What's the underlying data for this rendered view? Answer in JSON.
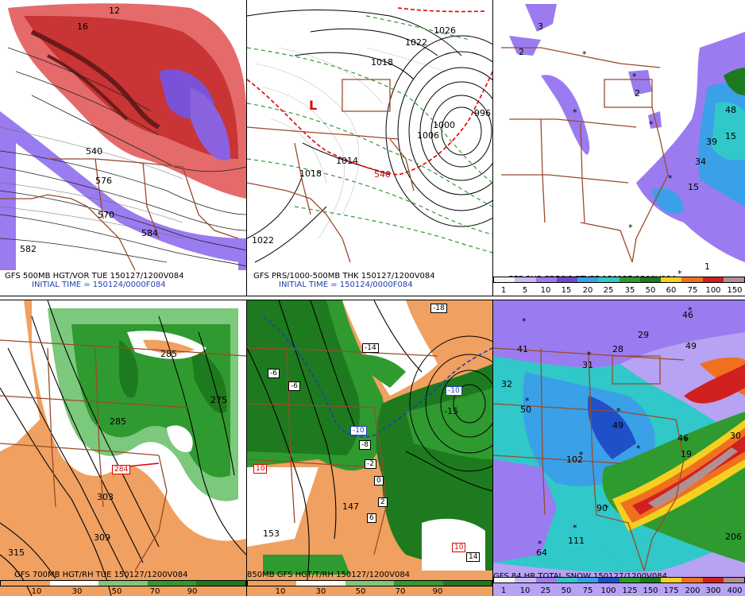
{
  "panels": {
    "p1": {
      "caption1": "GFS 500MB HGT/VOR TUE 150127/1200V084",
      "caption2": "INITIAL TIME = 150124/0000F084",
      "labels": [
        "12",
        "16",
        "576",
        "570",
        "582",
        "584",
        "540"
      ]
    },
    "p2": {
      "caption1": "GFS PRS/1000-500MB THK 150127/1200V084",
      "caption2": "INITIAL TIME = 150124/0000F084",
      "labels": [
        "1026",
        "1022",
        "1018",
        "1014",
        "1018",
        "1022",
        "1006",
        "1000",
        "996",
        "540",
        "L"
      ]
    },
    "p3": {
      "caption": "GFS 3HR PRECIP/PTYPE 150127/1200V084",
      "legend": [
        "1",
        "5",
        "10",
        "15",
        "20",
        "25",
        "35",
        "50",
        "60",
        "75",
        "100",
        "150"
      ],
      "labels": [
        "3",
        "2",
        "2",
        "48",
        "15",
        "34",
        "15",
        "1",
        "39"
      ]
    },
    "p4": {
      "caption": "GFS 700MB HGT/RH TUE 150127/1200V084",
      "legend": [
        "10",
        "30",
        "50",
        "70",
        "90"
      ],
      "labels": [
        "285",
        "285",
        "275",
        "284",
        "303",
        "309",
        "315"
      ]
    },
    "p5": {
      "caption": "850MB GFS HGT/T/RH 150127/1200V084",
      "legend": [
        "10",
        "30",
        "50",
        "70",
        "90"
      ],
      "labels": [
        "-18",
        "-14",
        "-6",
        "-6",
        "-10",
        "-10",
        "-15",
        "-8",
        "-2",
        "0",
        "2",
        "6",
        "10",
        "147",
        "153",
        "10",
        "14"
      ]
    },
    "p6": {
      "caption": "GFS 84 HR TOTAL SNOW 150127/1200V084",
      "legend": [
        "1",
        "10",
        "25",
        "50",
        "75",
        "100",
        "125",
        "150",
        "175",
        "200",
        "300",
        "400"
      ],
      "labels": [
        "46",
        "41",
        "29",
        "49",
        "28",
        "31",
        "32",
        "50",
        "49",
        "46",
        "30",
        "19",
        "102",
        "90",
        "64",
        "111",
        "206"
      ]
    }
  },
  "colors": {
    "state_lines": "#9a4a2a",
    "green_rh": "#2f9a2f",
    "dark_green": "#1e7a1e",
    "orange_dry": "#f0a060",
    "red_vort": "#d23b3b",
    "purple": "#8a62e0"
  }
}
